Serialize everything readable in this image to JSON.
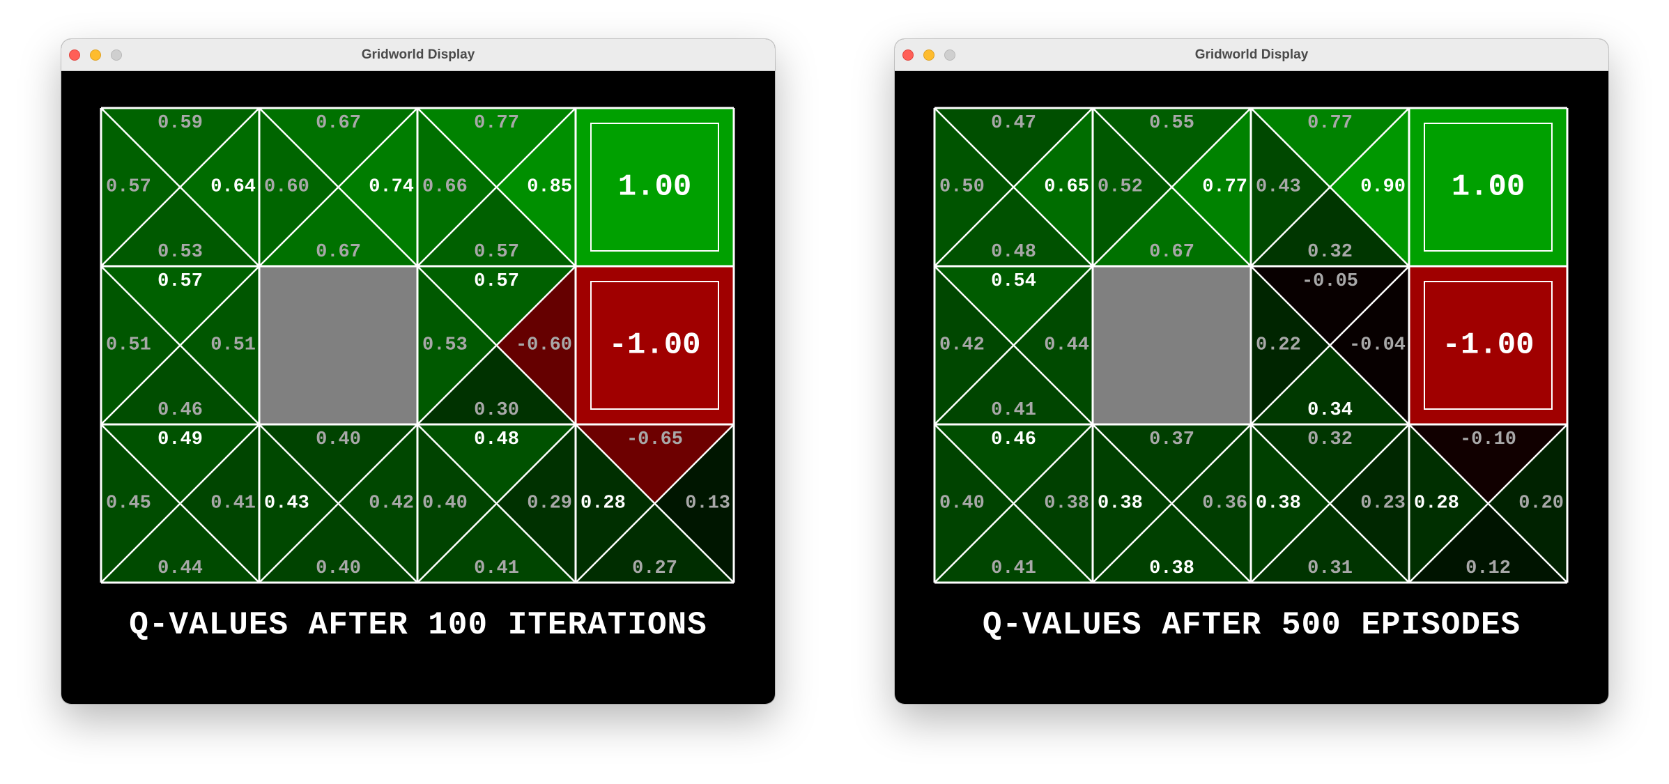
{
  "windows": [
    {
      "id": "left",
      "title": "Gridworld Display",
      "caption": "Q-VALUES AFTER 100 ITERATIONS",
      "cells": [
        [
          {
            "type": "q",
            "n": "0.59",
            "e": "0.64",
            "s": "0.53",
            "w": "0.57"
          },
          {
            "type": "q",
            "n": "0.67",
            "e": "0.74",
            "s": "0.67",
            "w": "0.60"
          },
          {
            "type": "q",
            "n": "0.77",
            "e": "0.85",
            "s": "0.57",
            "w": "0.66"
          },
          {
            "type": "terminal",
            "value": "1.00"
          }
        ],
        [
          {
            "type": "q",
            "n": "0.57",
            "e": "0.51",
            "s": "0.46",
            "w": "0.51"
          },
          {
            "type": "wall"
          },
          {
            "type": "q",
            "n": "0.57",
            "e": "-0.60",
            "s": "0.30",
            "w": "0.53"
          },
          {
            "type": "terminal",
            "value": "-1.00"
          }
        ],
        [
          {
            "type": "q",
            "n": "0.49",
            "e": "0.41",
            "s": "0.44",
            "w": "0.45"
          },
          {
            "type": "q",
            "n": "0.40",
            "e": "0.42",
            "s": "0.40",
            "w": "0.43"
          },
          {
            "type": "q",
            "n": "0.48",
            "e": "0.29",
            "s": "0.41",
            "w": "0.40"
          },
          {
            "type": "q",
            "n": "-0.65",
            "e": "0.13",
            "s": "0.27",
            "w": "0.28"
          }
        ]
      ]
    },
    {
      "id": "right",
      "title": "Gridworld Display",
      "caption": "Q-VALUES AFTER 500 EPISODES",
      "cells": [
        [
          {
            "type": "q",
            "n": "0.47",
            "e": "0.65",
            "s": "0.48",
            "w": "0.50"
          },
          {
            "type": "q",
            "n": "0.55",
            "e": "0.77",
            "s": "0.67",
            "w": "0.52"
          },
          {
            "type": "q",
            "n": "0.77",
            "e": "0.90",
            "s": "0.32",
            "w": "0.43"
          },
          {
            "type": "terminal",
            "value": "1.00"
          }
        ],
        [
          {
            "type": "q",
            "n": "0.54",
            "e": "0.44",
            "s": "0.41",
            "w": "0.42"
          },
          {
            "type": "wall"
          },
          {
            "type": "q",
            "n": "-0.05",
            "e": "-0.04",
            "s": "0.34",
            "w": "0.22"
          },
          {
            "type": "terminal",
            "value": "-1.00"
          }
        ],
        [
          {
            "type": "q",
            "n": "0.46",
            "e": "0.38",
            "s": "0.41",
            "w": "0.40"
          },
          {
            "type": "q",
            "n": "0.37",
            "e": "0.36",
            "s": "0.38",
            "w": "0.38"
          },
          {
            "type": "q",
            "n": "0.32",
            "e": "0.23",
            "s": "0.31",
            "w": "0.38"
          },
          {
            "type": "q",
            "n": "-0.10",
            "e": "0.20",
            "s": "0.12",
            "w": "0.28"
          }
        ]
      ]
    }
  ],
  "colors": {
    "gridline": "#ffffff",
    "wall": "#808080",
    "terminal_positive": "#00a000",
    "terminal_negative": "#a00000",
    "text_best": "#ffffff",
    "text_other": "#a8a8a8"
  }
}
